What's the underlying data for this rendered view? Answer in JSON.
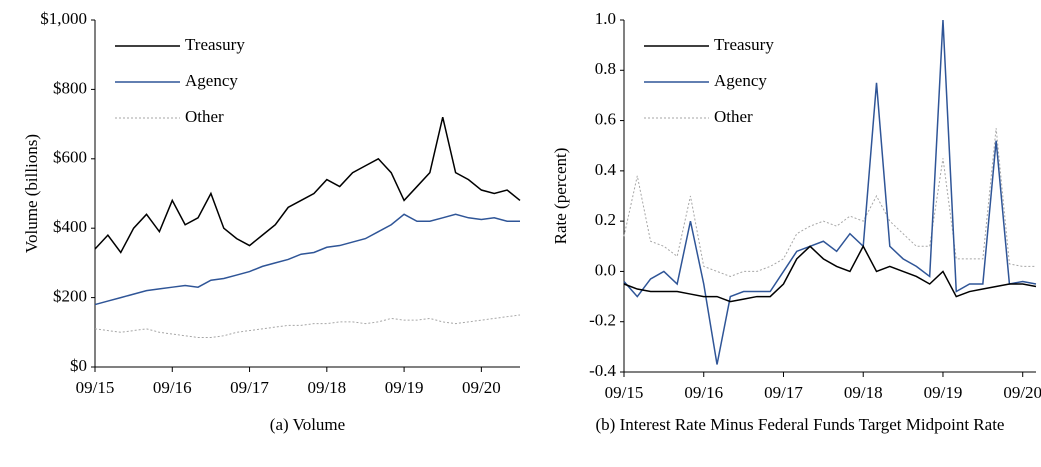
{
  "chart_data": [
    {
      "type": "line",
      "title": "(a)  Volume",
      "y_label": "Volume (billions)",
      "x": [
        "2015-09",
        "2015-11",
        "2016-01",
        "2016-03",
        "2016-05",
        "2016-07",
        "2016-09",
        "2016-11",
        "2017-01",
        "2017-03",
        "2017-05",
        "2017-07",
        "2017-09",
        "2017-11",
        "2018-01",
        "2018-03",
        "2018-05",
        "2018-07",
        "2018-09",
        "2018-11",
        "2019-01",
        "2019-03",
        "2019-05",
        "2019-07",
        "2019-09",
        "2019-11",
        "2020-01",
        "2020-03",
        "2020-05",
        "2020-07",
        "2020-09",
        "2020-11",
        "2021-01",
        "2021-03"
      ],
      "series": [
        {
          "name": "Treasury",
          "color": "#000000",
          "values": [
            340,
            380,
            330,
            400,
            440,
            390,
            480,
            410,
            430,
            500,
            400,
            370,
            350,
            380,
            410,
            460,
            480,
            500,
            540,
            520,
            560,
            580,
            600,
            560,
            480,
            520,
            560,
            720,
            560,
            540,
            510,
            500,
            510,
            480
          ]
        },
        {
          "name": "Agency",
          "color": "#2f5597",
          "values": [
            180,
            190,
            200,
            210,
            220,
            225,
            230,
            235,
            230,
            250,
            255,
            265,
            275,
            290,
            300,
            310,
            325,
            330,
            345,
            350,
            360,
            370,
            390,
            410,
            440,
            420,
            420,
            430,
            440,
            430,
            425,
            430,
            420,
            420
          ]
        },
        {
          "name": "Other",
          "color": "#a6a6a6",
          "dash": true,
          "values": [
            110,
            105,
            100,
            105,
            110,
            100,
            95,
            90,
            85,
            85,
            90,
            100,
            105,
            110,
            115,
            120,
            120,
            125,
            125,
            130,
            130,
            125,
            130,
            140,
            135,
            135,
            140,
            130,
            125,
            130,
            135,
            140,
            145,
            150
          ]
        }
      ],
      "xlim": [
        "2015-09",
        "2021-03"
      ],
      "xticks": [
        {
          "value": "2015-09",
          "label": "09/15"
        },
        {
          "value": "2016-09",
          "label": "09/16"
        },
        {
          "value": "2017-09",
          "label": "09/17"
        },
        {
          "value": "2018-09",
          "label": "09/18"
        },
        {
          "value": "2019-09",
          "label": "09/19"
        },
        {
          "value": "2020-09",
          "label": "09/20"
        }
      ],
      "ylim": [
        0,
        1000
      ],
      "yticks": [
        {
          "value": 0,
          "label": "$0"
        },
        {
          "value": 200,
          "label": "$200"
        },
        {
          "value": 400,
          "label": "$400"
        },
        {
          "value": 600,
          "label": "$600"
        },
        {
          "value": 800,
          "label": "$800"
        },
        {
          "value": 1000,
          "label": "$1,000"
        }
      ],
      "legend": "upper left"
    },
    {
      "type": "line",
      "title": "(b)  Interest Rate Minus Federal Funds Target Midpoint Rate",
      "y_label": "Rate (percent)",
      "x": [
        "2015-09",
        "2015-11",
        "2016-01",
        "2016-03",
        "2016-05",
        "2016-07",
        "2016-09",
        "2016-11",
        "2017-01",
        "2017-03",
        "2017-05",
        "2017-07",
        "2017-09",
        "2017-11",
        "2018-01",
        "2018-03",
        "2018-05",
        "2018-07",
        "2018-09",
        "2018-11",
        "2019-01",
        "2019-03",
        "2019-05",
        "2019-07",
        "2019-09",
        "2019-11",
        "2020-01",
        "2020-03",
        "2020-05",
        "2020-07",
        "2020-09",
        "2020-11"
      ],
      "series": [
        {
          "name": "Treasury",
          "color": "#000000",
          "values": [
            -0.05,
            -0.07,
            -0.08,
            -0.08,
            -0.08,
            -0.09,
            -0.1,
            -0.1,
            -0.12,
            -0.11,
            -0.1,
            -0.1,
            -0.05,
            0.05,
            0.1,
            0.05,
            0.02,
            0.0,
            0.1,
            0.0,
            0.02,
            0.0,
            -0.02,
            -0.05,
            0.0,
            -0.1,
            -0.08,
            -0.07,
            -0.06,
            -0.05,
            -0.05,
            -0.06
          ]
        },
        {
          "name": "Agency",
          "color": "#2f5597",
          "values": [
            -0.04,
            -0.1,
            -0.03,
            0.0,
            -0.05,
            0.2,
            -0.05,
            -0.37,
            -0.1,
            -0.08,
            -0.08,
            -0.08,
            0.0,
            0.08,
            0.1,
            0.12,
            0.08,
            0.15,
            0.1,
            0.75,
            0.1,
            0.05,
            0.02,
            -0.02,
            1.0,
            -0.08,
            -0.05,
            -0.05,
            0.52,
            -0.05,
            -0.04,
            -0.05
          ]
        },
        {
          "name": "Other",
          "color": "#a6a6a6",
          "dash": true,
          "values": [
            0.14,
            0.38,
            0.12,
            0.1,
            0.06,
            0.3,
            0.02,
            0.0,
            -0.02,
            0.0,
            0.0,
            0.02,
            0.05,
            0.15,
            0.18,
            0.2,
            0.18,
            0.22,
            0.2,
            0.3,
            0.2,
            0.15,
            0.1,
            0.1,
            0.45,
            0.05,
            0.05,
            0.05,
            0.57,
            0.03,
            0.02,
            0.02
          ]
        }
      ],
      "xlim": [
        "2015-09",
        "2020-11"
      ],
      "xticks": [
        {
          "value": "2015-09",
          "label": "09/15"
        },
        {
          "value": "2016-09",
          "label": "09/16"
        },
        {
          "value": "2017-09",
          "label": "09/17"
        },
        {
          "value": "2018-09",
          "label": "09/18"
        },
        {
          "value": "2019-09",
          "label": "09/19"
        },
        {
          "value": "2020-09",
          "label": "09/20"
        }
      ],
      "ylim": [
        -0.4,
        1.0
      ],
      "yticks": [
        -0.4,
        -0.2,
        {
          "value": 0,
          "label": "0.0"
        },
        0.2,
        0.4,
        0.6,
        0.8,
        {
          "value": 1,
          "label": "1.0"
        }
      ],
      "legend": "upper left"
    }
  ]
}
